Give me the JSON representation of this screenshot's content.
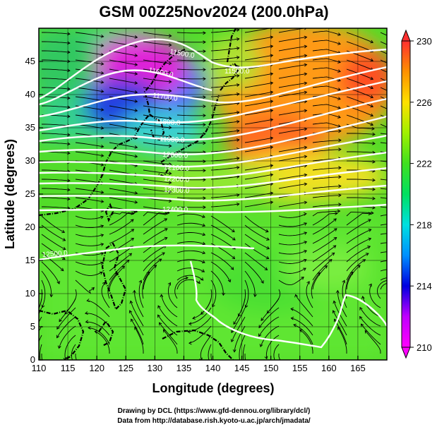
{
  "title": "GSM 00Z25Nov2024 (200.0hPa)",
  "xlabel": "Longitude (degrees)",
  "ylabel": "Latitude (degrees)",
  "credits": [
    "Drawing by DCL (https://www.gfd-dennou.org/library/dcl/)",
    "Data from http://database.rish.kyoto-u.ac.jp/arch/jmadata/"
  ],
  "x_ticks": [
    "110",
    "115",
    "120",
    "125",
    "130",
    "135",
    "140",
    "145",
    "150",
    "155",
    "160",
    "165"
  ],
  "y_ticks": [
    "0",
    "5",
    "10",
    "15",
    "20",
    "25",
    "30",
    "35",
    "40",
    "45"
  ],
  "colorbar_ticks": [
    "210",
    "214",
    "218",
    "222",
    "226",
    "230"
  ],
  "contour_labels": [
    {
      "text": "11500.0"
    },
    {
      "text": "11500.0"
    },
    {
      "text": "11600.0"
    },
    {
      "text": "11700.0"
    },
    {
      "text": "11800.0"
    },
    {
      "text": "11900.0"
    },
    {
      "text": "12000.0"
    },
    {
      "text": "12100.0"
    },
    {
      "text": "12200.0"
    },
    {
      "text": "12300.0"
    },
    {
      "text": "12400.0"
    },
    {
      "text": "12500.0"
    }
  ],
  "map": {
    "lon_range": [
      110,
      170
    ],
    "lat_range": [
      0,
      50
    ],
    "colorbar_range": [
      210,
      230
    ],
    "colors": {
      "cmap": [
        "#ff00ff",
        "#8000ff",
        "#0000ff",
        "#00c0ff",
        "#00ffc0",
        "#30e030",
        "#80ff00",
        "#ffff00",
        "#ff8000",
        "#ff2020"
      ],
      "contour": "#ffffff",
      "streamline": "#000000",
      "coast": "#000000"
    }
  }
}
